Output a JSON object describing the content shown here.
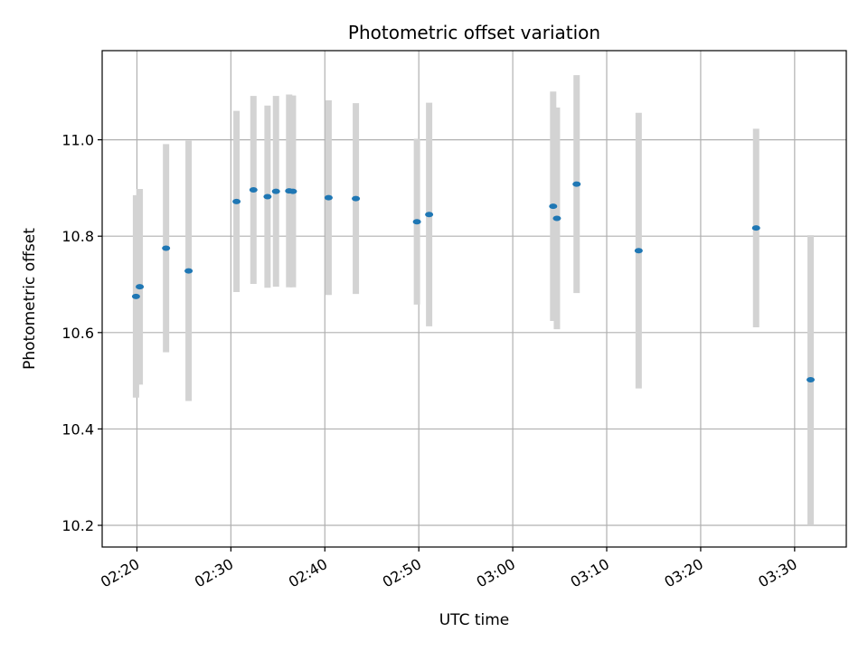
{
  "chart_data": {
    "type": "scatter",
    "title": "Photometric offset variation",
    "xlabel": "UTC time",
    "ylabel": "Photometric offset",
    "x_ticks": [
      "02:20",
      "02:30",
      "02:40",
      "02:50",
      "03:00",
      "03:10",
      "03:20",
      "03:30"
    ],
    "y_ticks": [
      "10.2",
      "10.4",
      "10.6",
      "10.8",
      "11.0"
    ],
    "xlim": [
      "02:16:18",
      "03:35:30"
    ],
    "ylim": [
      10.155,
      11.185
    ],
    "grid": true,
    "colors": {
      "point": "#1f77b4",
      "errorbar": "#d3d3d3",
      "grid": "#b0b0b0"
    },
    "series": [
      {
        "points": [
          {
            "x": "02:19:54",
            "y": 10.675,
            "yerr": 0.21
          },
          {
            "x": "02:20:18",
            "y": 10.695,
            "yerr": 0.203
          },
          {
            "x": "02:23:06",
            "y": 10.775,
            "yerr": 0.216
          },
          {
            "x": "02:25:30",
            "y": 10.728,
            "yerr": 0.27
          },
          {
            "x": "02:30:36",
            "y": 10.872,
            "yerr": 0.188
          },
          {
            "x": "02:32:24",
            "y": 10.896,
            "yerr": 0.195
          },
          {
            "x": "02:33:54",
            "y": 10.882,
            "yerr": 0.189
          },
          {
            "x": "02:34:48",
            "y": 10.893,
            "yerr": 0.198
          },
          {
            "x": "02:36:12",
            "y": 10.894,
            "yerr": 0.2
          },
          {
            "x": "02:36:36",
            "y": 10.893,
            "yerr": 0.199
          },
          {
            "x": "02:40:24",
            "y": 10.88,
            "yerr": 0.202
          },
          {
            "x": "02:43:18",
            "y": 10.878,
            "yerr": 0.198
          },
          {
            "x": "02:49:48",
            "y": 10.83,
            "yerr": 0.172
          },
          {
            "x": "02:51:06",
            "y": 10.845,
            "yerr": 0.232
          },
          {
            "x": "03:04:18",
            "y": 10.862,
            "yerr": 0.238
          },
          {
            "x": "03:04:42",
            "y": 10.837,
            "yerr": 0.23
          },
          {
            "x": "03:06:48",
            "y": 10.908,
            "yerr": 0.226
          },
          {
            "x": "03:13:24",
            "y": 10.77,
            "yerr": 0.286
          },
          {
            "x": "03:25:54",
            "y": 10.817,
            "yerr": 0.206
          },
          {
            "x": "03:31:42",
            "y": 10.502,
            "yerr": 0.3
          }
        ]
      }
    ]
  }
}
